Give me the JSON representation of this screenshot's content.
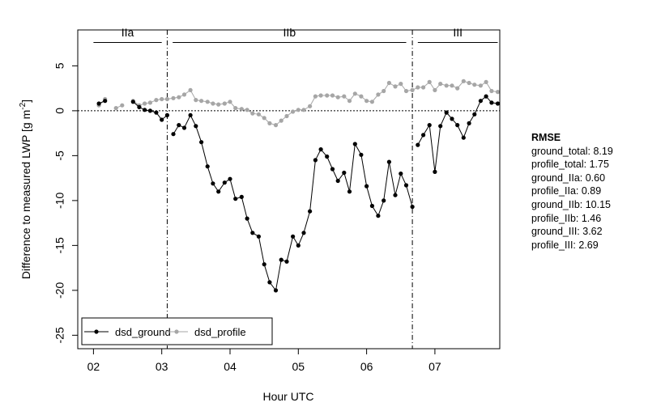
{
  "chart_data": {
    "type": "line",
    "title": "",
    "xlabel": "Hour UTC",
    "ylabel_main": "Difference to measured LWP [g m",
    "ylabel_exp": "-2",
    "ylabel_close": "]",
    "xlim": [
      1.77,
      7.95
    ],
    "ylim": [
      -26.5,
      9.0
    ],
    "x_ticks": [
      2,
      3,
      4,
      5,
      6,
      7
    ],
    "x_tick_labels": [
      "02",
      "03",
      "04",
      "05",
      "06",
      "07"
    ],
    "y_ticks": [
      -25,
      -20,
      -15,
      -10,
      -5,
      0,
      5
    ],
    "y_tick_labels": [
      "-25",
      "-20",
      "-15",
      "-10",
      "-5",
      "0",
      "5"
    ],
    "zero_line": 0,
    "period_boundaries": [
      3.08,
      6.67
    ],
    "periods": [
      {
        "label": "IIa",
        "x_start": 2.0,
        "x_end": 3.0
      },
      {
        "label": "IIb",
        "x_start": 3.16,
        "x_end": 6.58
      },
      {
        "label": "III",
        "x_start": 6.75,
        "x_end": 7.92
      }
    ],
    "period_line_y": 7.6,
    "period_label_y": 8.3,
    "series": [
      {
        "name": "dsd_ground",
        "color": "#000000",
        "segments": [
          [
            [
              2.08,
              0.8
            ],
            [
              2.17,
              1.1
            ]
          ],
          [
            [
              2.58,
              1.0
            ],
            [
              2.67,
              0.4
            ],
            [
              2.75,
              0.1
            ],
            [
              2.83,
              0.0
            ],
            [
              2.92,
              -0.2
            ],
            [
              3.0,
              -1.0
            ],
            [
              3.08,
              -0.5
            ]
          ],
          [
            [
              3.17,
              -2.6
            ],
            [
              3.25,
              -1.6
            ],
            [
              3.33,
              -1.9
            ],
            [
              3.42,
              -0.5
            ],
            [
              3.5,
              -1.7
            ],
            [
              3.58,
              -3.5
            ],
            [
              3.67,
              -6.2
            ],
            [
              3.75,
              -8.1
            ],
            [
              3.83,
              -9.0
            ],
            [
              3.92,
              -8.0
            ],
            [
              4.0,
              -7.6
            ],
            [
              4.08,
              -9.8
            ],
            [
              4.17,
              -9.6
            ],
            [
              4.25,
              -12.0
            ],
            [
              4.33,
              -13.6
            ],
            [
              4.42,
              -14.0
            ],
            [
              4.5,
              -17.1
            ],
            [
              4.58,
              -19.1
            ],
            [
              4.67,
              -20.0
            ],
            [
              4.75,
              -16.6
            ],
            [
              4.83,
              -16.8
            ],
            [
              4.92,
              -14.0
            ],
            [
              5.0,
              -15.0
            ],
            [
              5.08,
              -13.6
            ],
            [
              5.17,
              -11.2
            ],
            [
              5.25,
              -5.5
            ],
            [
              5.33,
              -4.3
            ],
            [
              5.42,
              -5.1
            ],
            [
              5.5,
              -6.5
            ],
            [
              5.58,
              -7.8
            ],
            [
              5.67,
              -6.9
            ],
            [
              5.75,
              -9.0
            ],
            [
              5.83,
              -3.7
            ],
            [
              5.92,
              -4.9
            ],
            [
              6.0,
              -8.4
            ],
            [
              6.08,
              -10.6
            ],
            [
              6.17,
              -11.7
            ],
            [
              6.25,
              -10.0
            ],
            [
              6.33,
              -5.7
            ],
            [
              6.42,
              -9.4
            ],
            [
              6.5,
              -7.0
            ],
            [
              6.58,
              -8.3
            ],
            [
              6.67,
              -10.7
            ]
          ],
          [
            [
              6.75,
              -3.8
            ],
            [
              6.83,
              -2.7
            ],
            [
              6.92,
              -1.6
            ],
            [
              7.0,
              -6.8
            ],
            [
              7.08,
              -1.7
            ],
            [
              7.17,
              -0.2
            ],
            [
              7.25,
              -0.9
            ],
            [
              7.33,
              -1.6
            ],
            [
              7.42,
              -3.0
            ],
            [
              7.5,
              -1.4
            ],
            [
              7.58,
              -0.4
            ],
            [
              7.67,
              1.1
            ],
            [
              7.75,
              1.6
            ],
            [
              7.83,
              0.9
            ],
            [
              7.92,
              0.8
            ]
          ]
        ]
      },
      {
        "name": "dsd_profile",
        "color": "#a6a6a6",
        "segments": [
          [
            [
              2.08,
              0.6
            ],
            [
              2.17,
              1.3
            ]
          ],
          [
            [
              2.33,
              0.3
            ],
            [
              2.42,
              0.6
            ]
          ],
          [
            [
              2.58,
              1.1
            ],
            [
              2.67,
              0.6
            ],
            [
              2.75,
              0.8
            ],
            [
              2.83,
              0.9
            ],
            [
              2.92,
              1.2
            ],
            [
              3.0,
              1.3
            ],
            [
              3.08,
              1.3
            ],
            [
              3.17,
              1.4
            ],
            [
              3.25,
              1.5
            ],
            [
              3.33,
              1.8
            ],
            [
              3.42,
              2.3
            ],
            [
              3.5,
              1.2
            ],
            [
              3.58,
              1.1
            ],
            [
              3.67,
              1.0
            ],
            [
              3.75,
              0.8
            ],
            [
              3.83,
              0.7
            ],
            [
              3.92,
              0.8
            ],
            [
              4.0,
              1.0
            ],
            [
              4.08,
              0.3
            ],
            [
              4.17,
              0.2
            ],
            [
              4.25,
              0.1
            ],
            [
              4.33,
              -0.3
            ],
            [
              4.42,
              -0.4
            ],
            [
              4.5,
              -0.8
            ],
            [
              4.58,
              -1.4
            ],
            [
              4.67,
              -1.6
            ],
            [
              4.75,
              -1.1
            ],
            [
              4.83,
              -0.6
            ],
            [
              4.92,
              -0.1
            ],
            [
              5.0,
              0.1
            ],
            [
              5.08,
              0.1
            ],
            [
              5.17,
              0.5
            ],
            [
              5.25,
              1.6
            ],
            [
              5.33,
              1.7
            ],
            [
              5.42,
              1.7
            ],
            [
              5.5,
              1.7
            ],
            [
              5.58,
              1.5
            ],
            [
              5.67,
              1.6
            ],
            [
              5.75,
              1.1
            ],
            [
              5.83,
              1.9
            ],
            [
              5.92,
              1.6
            ],
            [
              6.0,
              1.1
            ],
            [
              6.08,
              1.0
            ],
            [
              6.17,
              1.8
            ],
            [
              6.25,
              2.2
            ],
            [
              6.33,
              3.1
            ],
            [
              6.42,
              2.7
            ],
            [
              6.5,
              3.0
            ],
            [
              6.58,
              2.2
            ],
            [
              6.67,
              2.3
            ],
            [
              6.75,
              2.6
            ],
            [
              6.83,
              2.6
            ],
            [
              6.92,
              3.2
            ],
            [
              7.0,
              2.3
            ],
            [
              7.08,
              3.0
            ],
            [
              7.17,
              2.8
            ],
            [
              7.25,
              2.8
            ],
            [
              7.33,
              2.5
            ],
            [
              7.42,
              3.3
            ],
            [
              7.5,
              3.1
            ],
            [
              7.58,
              2.9
            ],
            [
              7.67,
              2.8
            ],
            [
              7.75,
              3.2
            ],
            [
              7.83,
              2.2
            ],
            [
              7.92,
              2.1
            ]
          ]
        ]
      }
    ],
    "legend": {
      "placement": "bottom-left",
      "entries": [
        "dsd_ground",
        "dsd_profile"
      ]
    },
    "grid": false
  },
  "rmse": {
    "title": "RMSE",
    "lines": [
      "ground_total: 8.19",
      "profile_total: 1.75",
      "ground_IIa: 0.60",
      "profile_IIa: 0.89",
      "ground_IIb: 10.15",
      "profile_IIb: 1.46",
      "ground_III: 3.62",
      "profile_III: 2.69"
    ]
  }
}
